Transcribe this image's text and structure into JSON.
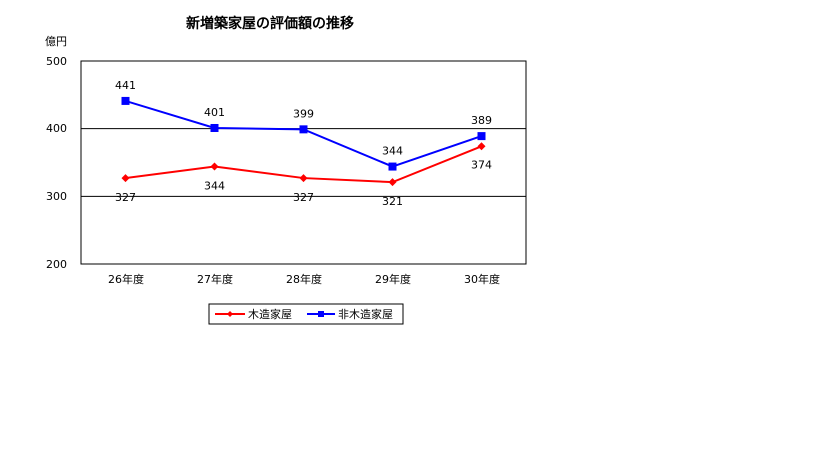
{
  "chart_data": {
    "type": "line",
    "title": "新増築家屋の評価額の推移",
    "unit_label": "億円",
    "categories": [
      "26年度",
      "27年度",
      "28年度",
      "29年度",
      "30年度"
    ],
    "y_ticks": [
      "500",
      "400",
      "300",
      "200"
    ],
    "ylim": [
      200,
      500
    ],
    "grid": true,
    "legend_position": "bottom",
    "series": [
      {
        "name": "木造家屋",
        "values": [
          327,
          344,
          327,
          321,
          374
        ],
        "color": "#ff0000",
        "marker": "diamond",
        "labels": [
          "327",
          "344",
          "327",
          "321",
          "374"
        ]
      },
      {
        "name": "非木造家屋",
        "values": [
          441,
          401,
          399,
          344,
          389
        ],
        "color": "#0000ff",
        "marker": "square",
        "labels": [
          "441",
          "401",
          "399",
          "344",
          "389"
        ]
      }
    ]
  }
}
